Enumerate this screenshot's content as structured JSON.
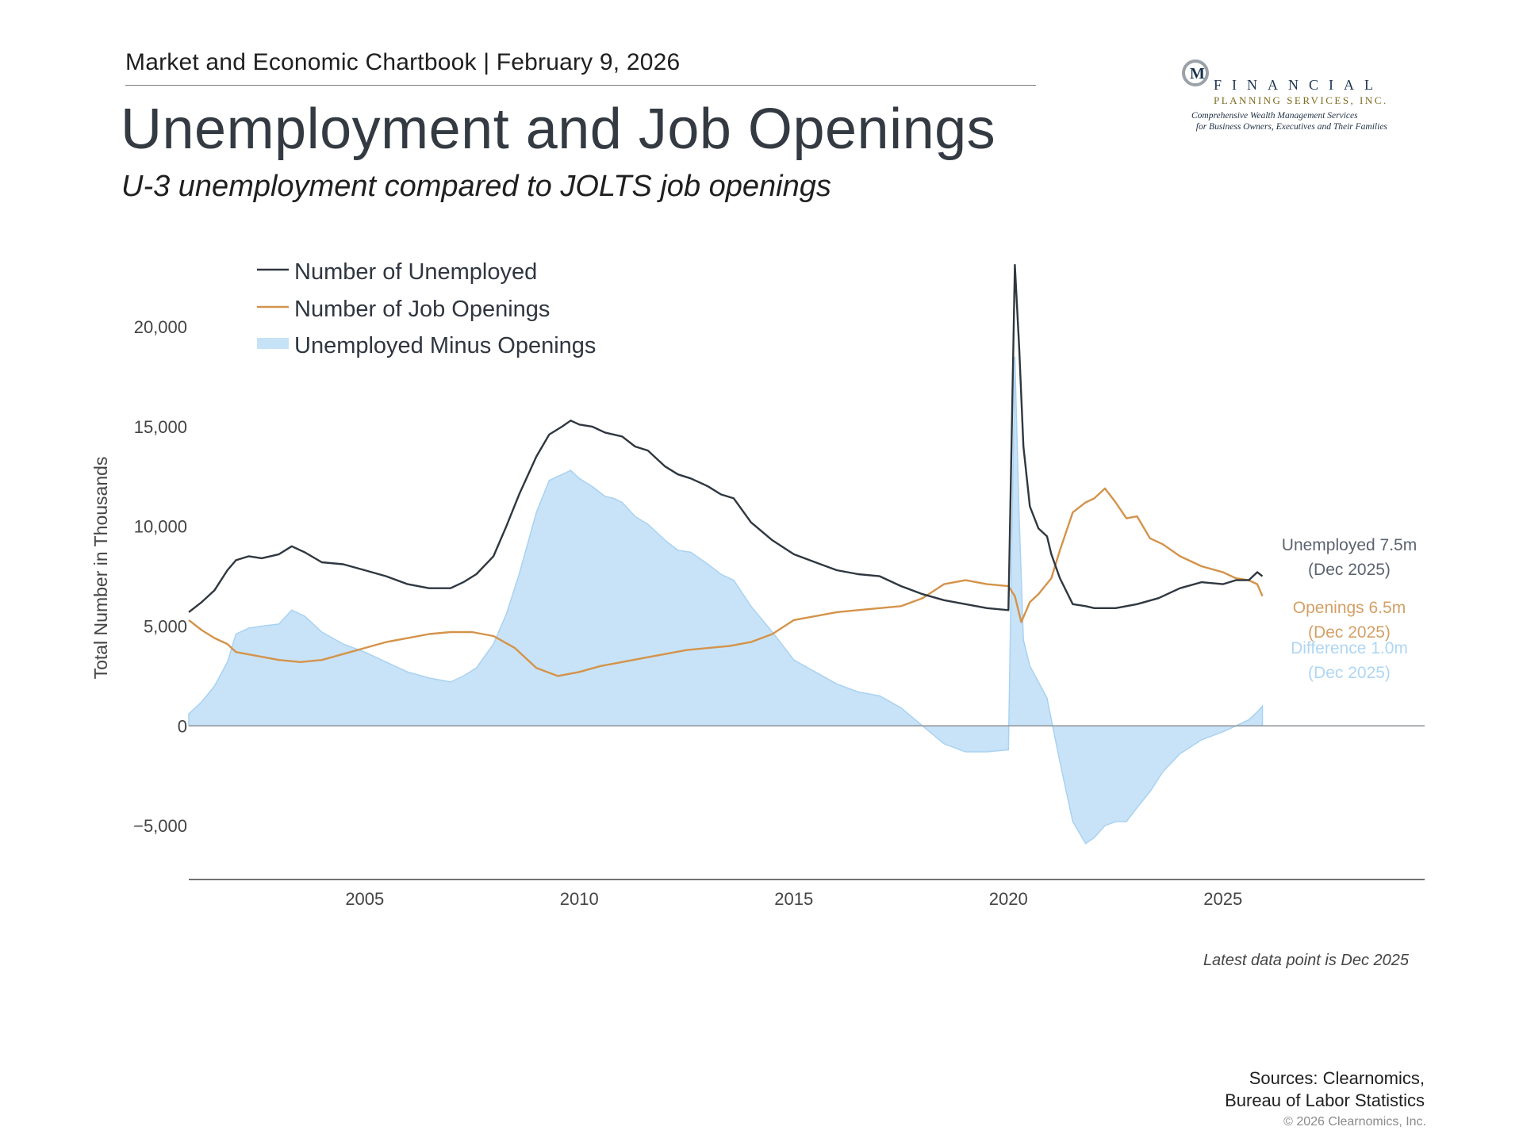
{
  "header": {
    "chartbook": "Market and Economic Chartbook | February 9, 2026",
    "title": "Unemployment and Job Openings",
    "subtitle": "U-3 unemployment compared to JOLTS job openings"
  },
  "logo": {
    "mark_letter": "M",
    "name": "FINANCIAL",
    "sub": "PLANNING SERVICES, INC.",
    "tagline": "Comprehensive Wealth Management Services\n  for Business Owners, Executives and Their Families"
  },
  "chart_data": {
    "type": "line",
    "title": "",
    "xlabel": "",
    "ylabel": "Total Number in Thousands",
    "xlim": [
      2000.9,
      2029.7
    ],
    "ylim": [
      -7700,
      23500
    ],
    "yticks": [
      -5000,
      0,
      5000,
      10000,
      15000,
      20000
    ],
    "ytick_labels": [
      "−5,000",
      "0",
      "5,000",
      "10,000",
      "15,000",
      "20,000"
    ],
    "xticks": [
      2005,
      2010,
      2015,
      2020,
      2025
    ],
    "xtick_labels": [
      "2005",
      "2010",
      "2015",
      "2020",
      "2025"
    ],
    "grid": false,
    "legend": "top-left",
    "colors": {
      "unemployed": "#2f3740",
      "openings": "#d4934a",
      "difference": "#c5e2f7",
      "zero_line": "#8c9196"
    },
    "series": [
      {
        "name": "Number of Unemployed",
        "key": "unemployed",
        "x": [
          2000.9,
          2001.2,
          2001.5,
          2001.8,
          2002.0,
          2002.3,
          2002.6,
          2003.0,
          2003.3,
          2003.6,
          2004.0,
          2004.5,
          2005.0,
          2005.5,
          2006.0,
          2006.5,
          2007.0,
          2007.3,
          2007.6,
          2008.0,
          2008.3,
          2008.6,
          2009.0,
          2009.3,
          2009.6,
          2009.8,
          2010.0,
          2010.3,
          2010.6,
          2010.8,
          2011.0,
          2011.3,
          2011.6,
          2012.0,
          2012.3,
          2012.6,
          2013.0,
          2013.3,
          2013.6,
          2014.0,
          2014.5,
          2015.0,
          2015.5,
          2016.0,
          2016.5,
          2017.0,
          2017.5,
          2018.0,
          2018.5,
          2019.0,
          2019.5,
          2020.0,
          2020.15,
          2020.25,
          2020.35,
          2020.5,
          2020.7,
          2020.9,
          2021.0,
          2021.2,
          2021.5,
          2021.8,
          2022.0,
          2022.5,
          2023.0,
          2023.5,
          2024.0,
          2024.5,
          2025.0,
          2025.3,
          2025.6,
          2025.8,
          2025.92
        ],
        "values": [
          5700,
          6200,
          6800,
          7800,
          8300,
          8500,
          8400,
          8600,
          9000,
          8700,
          8200,
          8100,
          7800,
          7500,
          7100,
          6900,
          6900,
          7200,
          7600,
          8500,
          10000,
          11600,
          13500,
          14600,
          15000,
          15300,
          15100,
          15000,
          14700,
          14600,
          14500,
          14000,
          13800,
          13000,
          12600,
          12400,
          12000,
          11600,
          11400,
          10200,
          9300,
          8600,
          8200,
          7800,
          7600,
          7500,
          7000,
          6600,
          6300,
          6100,
          5900,
          5800,
          23100,
          19000,
          14000,
          11000,
          9900,
          9500,
          8600,
          7400,
          6100,
          6000,
          5900,
          5900,
          6100,
          6400,
          6900,
          7200,
          7100,
          7300,
          7300,
          7700,
          7500
        ]
      },
      {
        "name": "Number of Job Openings",
        "key": "openings",
        "x": [
          2000.9,
          2001.2,
          2001.5,
          2001.8,
          2002.0,
          2002.5,
          2003.0,
          2003.5,
          2004.0,
          2004.5,
          2005.0,
          2005.5,
          2006.0,
          2006.5,
          2007.0,
          2007.5,
          2008.0,
          2008.5,
          2009.0,
          2009.5,
          2010.0,
          2010.5,
          2011.0,
          2011.5,
          2012.0,
          2012.5,
          2013.0,
          2013.5,
          2014.0,
          2014.5,
          2015.0,
          2015.5,
          2016.0,
          2016.5,
          2017.0,
          2017.5,
          2018.0,
          2018.5,
          2019.0,
          2019.5,
          2020.0,
          2020.15,
          2020.3,
          2020.5,
          2020.7,
          2021.0,
          2021.2,
          2021.5,
          2021.8,
          2022.0,
          2022.25,
          2022.5,
          2022.75,
          2023.0,
          2023.3,
          2023.6,
          2024.0,
          2024.5,
          2025.0,
          2025.3,
          2025.6,
          2025.8,
          2025.92
        ],
        "values": [
          5300,
          4800,
          4400,
          4100,
          3700,
          3500,
          3300,
          3200,
          3300,
          3600,
          3900,
          4200,
          4400,
          4600,
          4700,
          4700,
          4500,
          3900,
          2900,
          2500,
          2700,
          3000,
          3200,
          3400,
          3600,
          3800,
          3900,
          4000,
          4200,
          4600,
          5300,
          5500,
          5700,
          5800,
          5900,
          6000,
          6400,
          7100,
          7300,
          7100,
          7000,
          6500,
          5200,
          6200,
          6600,
          7400,
          8800,
          10700,
          11200,
          11400,
          11900,
          11200,
          10400,
          10500,
          9400,
          9100,
          8500,
          8000,
          7700,
          7400,
          7300,
          7100,
          6500
        ]
      },
      {
        "name": "Unemployed Minus Openings",
        "key": "difference",
        "x": [
          2000.9,
          2001.2,
          2001.5,
          2001.8,
          2002.0,
          2002.3,
          2002.6,
          2003.0,
          2003.3,
          2003.6,
          2004.0,
          2004.5,
          2005.0,
          2005.5,
          2006.0,
          2006.5,
          2007.0,
          2007.3,
          2007.6,
          2008.0,
          2008.3,
          2008.6,
          2009.0,
          2009.3,
          2009.6,
          2009.8,
          2010.0,
          2010.3,
          2010.6,
          2010.8,
          2011.0,
          2011.3,
          2011.6,
          2012.0,
          2012.3,
          2012.6,
          2013.0,
          2013.3,
          2013.6,
          2014.0,
          2014.5,
          2015.0,
          2015.5,
          2016.0,
          2016.5,
          2017.0,
          2017.5,
          2018.0,
          2018.5,
          2019.0,
          2019.5,
          2020.0,
          2020.15,
          2020.25,
          2020.35,
          2020.5,
          2020.7,
          2020.9,
          2021.0,
          2021.2,
          2021.5,
          2021.8,
          2022.0,
          2022.25,
          2022.5,
          2022.75,
          2023.0,
          2023.3,
          2023.6,
          2024.0,
          2024.5,
          2025.0,
          2025.3,
          2025.6,
          2025.8,
          2025.92
        ],
        "values": [
          600,
          1200,
          2000,
          3200,
          4600,
          4900,
          5000,
          5100,
          5800,
          5500,
          4700,
          4100,
          3700,
          3200,
          2700,
          2400,
          2200,
          2500,
          2900,
          4100,
          5600,
          7600,
          10700,
          12300,
          12600,
          12800,
          12400,
          12000,
          11500,
          11400,
          11200,
          10500,
          10100,
          9300,
          8800,
          8700,
          8100,
          7600,
          7300,
          6000,
          4700,
          3300,
          2700,
          2100,
          1700,
          1500,
          900,
          0,
          -900,
          -1300,
          -1300,
          -1200,
          18500,
          10500,
          4300,
          3000,
          2200,
          1400,
          300,
          -1800,
          -4800,
          -5900,
          -5600,
          -5000,
          -4800,
          -4800,
          -4100,
          -3300,
          -2300,
          -1400,
          -700,
          -300,
          0,
          300,
          700,
          1000
        ]
      }
    ],
    "annotations": [
      {
        "series": "unemployed",
        "line1": "Unemployed 7.5m",
        "line2": "(Dec 2025)"
      },
      {
        "series": "openings",
        "line1": "Openings 6.5m",
        "line2": "(Dec 2025)"
      },
      {
        "series": "difference",
        "line1": "Difference 1.0m",
        "line2": "(Dec 2025)"
      }
    ]
  },
  "footer": {
    "note": "Latest data point is Dec 2025",
    "sources_line1": "Sources: Clearnomics,",
    "sources_line2": "Bureau of Labor Statistics",
    "copyright": "© 2026 Clearnomics, Inc."
  }
}
